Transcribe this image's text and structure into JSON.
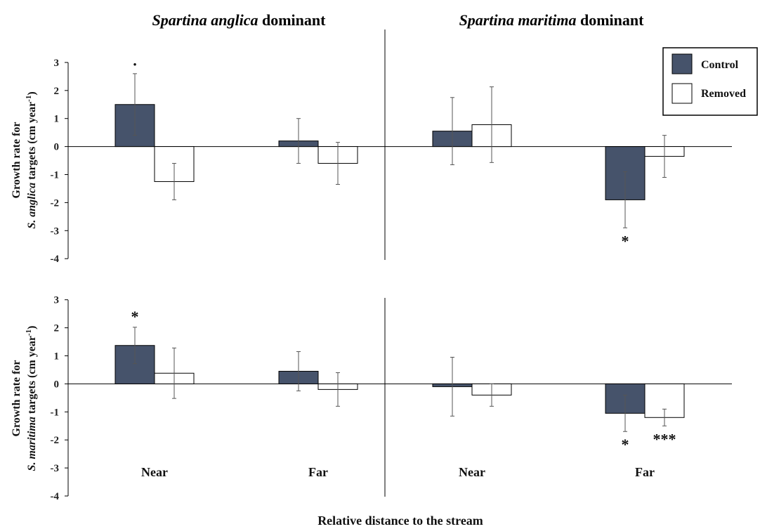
{
  "figure": {
    "titles": [
      {
        "italic": "Spartina anglica",
        "plain": " dominant"
      },
      {
        "italic": "Spartina maritima",
        "plain": " dominant"
      }
    ],
    "xlabel": "Relative distance to the stream",
    "legend": [
      "Control",
      "Removed"
    ],
    "colors": {
      "control": "#46536b",
      "removed": "#ffffff",
      "axis": "#000000",
      "error_bar": "#555555"
    }
  },
  "chart_data": [
    {
      "type": "bar",
      "row": "top",
      "ylabel": {
        "line1": "Growth rate for",
        "line2_italic": "S. anglica",
        "line2_plain": " targets (cm year",
        "sup": "-1",
        "close": ")"
      },
      "ylim": [
        -4,
        3
      ],
      "yticks": [
        3,
        2,
        1,
        0,
        -1,
        -2,
        -3,
        -4
      ],
      "groups": [
        "Near",
        "Far",
        "Near",
        "Far"
      ],
      "series": [
        {
          "name": "Control",
          "values": [
            1.5,
            0.2,
            0.55,
            -1.9
          ],
          "errors": [
            1.1,
            0.8,
            1.2,
            1.0
          ],
          "sig": [
            "·",
            "",
            "",
            "*"
          ]
        },
        {
          "name": "Removed",
          "values": [
            -1.25,
            -0.6,
            0.78,
            -0.35
          ],
          "errors": [
            0.65,
            0.75,
            1.35,
            0.75
          ],
          "sig": [
            "",
            "",
            "",
            ""
          ]
        }
      ]
    },
    {
      "type": "bar",
      "row": "bottom",
      "ylabel": {
        "line1": "Growth rate for",
        "line2_italic": "S. maritima",
        "line2_plain": " targets (cm year",
        "sup": "-1",
        "close": ")"
      },
      "ylim": [
        -4,
        3
      ],
      "yticks": [
        3,
        2,
        1,
        0,
        -1,
        -2,
        -3,
        -4
      ],
      "groups": [
        "Near",
        "Far",
        "Near",
        "Far"
      ],
      "series": [
        {
          "name": "Control",
          "values": [
            1.37,
            0.45,
            -0.1,
            -1.05
          ],
          "errors": [
            0.65,
            0.7,
            1.05,
            0.65
          ],
          "sig": [
            "*",
            "",
            "",
            "*"
          ]
        },
        {
          "name": "Removed",
          "values": [
            0.38,
            -0.2,
            -0.4,
            -1.2
          ],
          "errors": [
            0.9,
            0.6,
            0.4,
            0.3
          ],
          "sig": [
            "",
            "",
            "",
            "***"
          ]
        }
      ]
    }
  ]
}
